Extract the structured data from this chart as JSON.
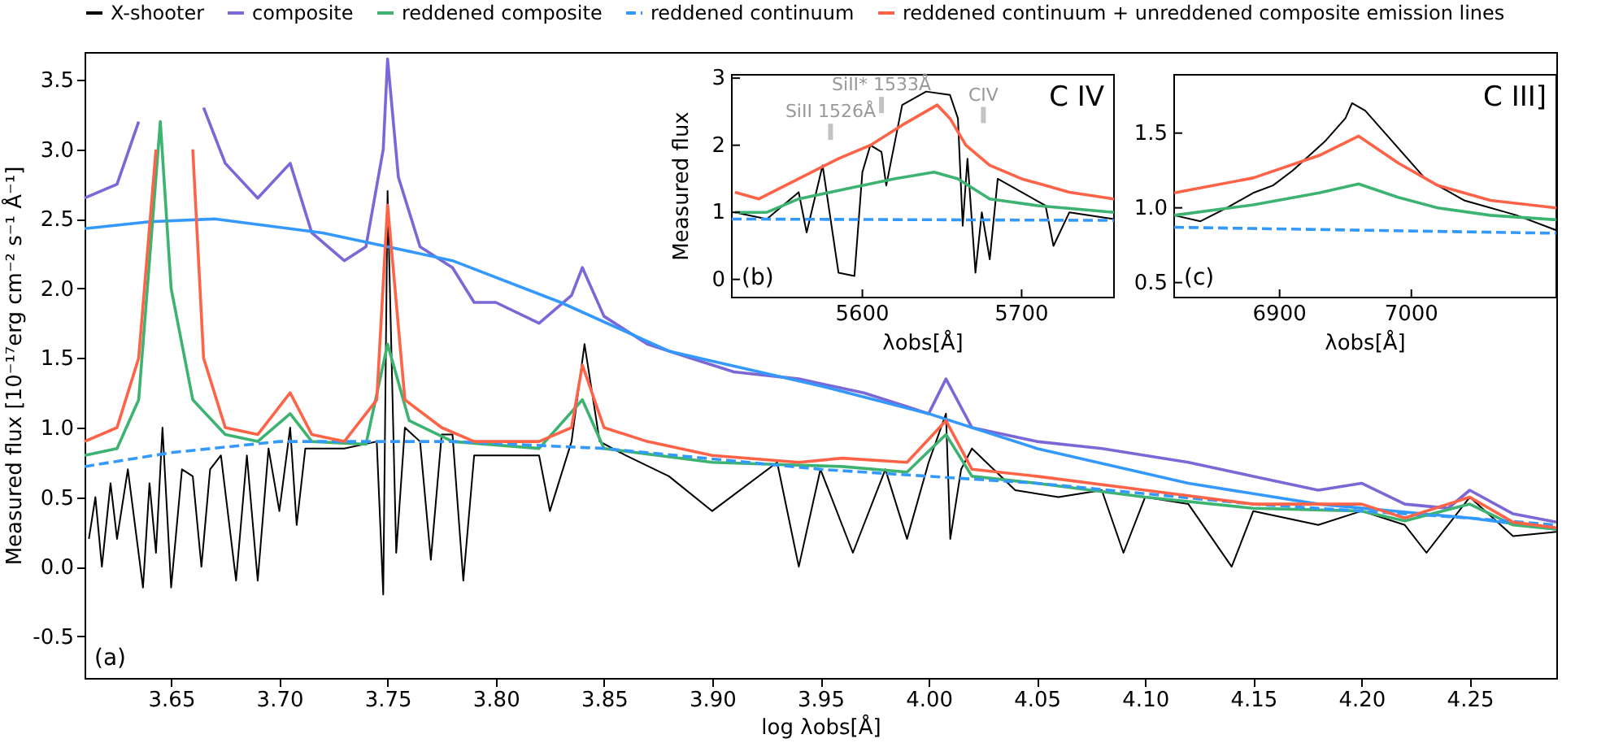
{
  "chart_data": [
    {
      "type": "line",
      "xlabel": "log λobs[Å]",
      "ylabel": "Measured flux [10⁻¹⁷erg cm⁻² s⁻¹ Å⁻¹]",
      "legend": "top",
      "grid": false,
      "xlim": [
        3.61,
        4.29
      ],
      "ylim": [
        -0.8,
        3.7
      ],
      "xticks": [
        3.65,
        {
          "value": 3.7,
          "label": "3.70"
        },
        3.75,
        {
          "value": 3.8,
          "label": "3.80"
        },
        3.85,
        {
          "value": 3.9,
          "label": "3.90"
        },
        3.95,
        {
          "value": 4.0,
          "label": "4.00"
        },
        4.05,
        {
          "value": 4.1,
          "label": "4.10"
        },
        4.15,
        {
          "value": 4.2,
          "label": "4.20"
        },
        4.25
      ],
      "yticks": [
        -0.5,
        {
          "value": 0,
          "label": "0.0"
        },
        0.5,
        {
          "value": 1,
          "label": "1.0"
        },
        1.5,
        {
          "value": 2,
          "label": "2.0"
        },
        2.5,
        {
          "value": 3,
          "label": "3.0"
        },
        3.5
      ],
      "annotations": [
        "(a)"
      ],
      "series": [
        {
          "name": "X-shooter",
          "color": "#000000",
          "line_style": "solid",
          "x": [
            3.612,
            3.615,
            3.618,
            3.622,
            3.625,
            3.63,
            3.637,
            3.64,
            3.643,
            3.646,
            3.65,
            3.655,
            3.66,
            3.664,
            3.668,
            3.673,
            3.68,
            3.685,
            3.69,
            3.695,
            3.7,
            3.705,
            3.708,
            3.712,
            3.73,
            3.745,
            3.748,
            3.75,
            3.754,
            3.758,
            3.765,
            3.77,
            3.775,
            3.78,
            3.785,
            3.79,
            3.82,
            3.825,
            3.835,
            3.841,
            3.848,
            3.86,
            3.88,
            3.9,
            3.93,
            3.94,
            3.95,
            3.965,
            3.98,
            3.99,
            4.0,
            4.008,
            4.01,
            4.015,
            4.02,
            4.04,
            4.06,
            4.08,
            4.09,
            4.1,
            4.12,
            4.14,
            4.15,
            4.18,
            4.2,
            4.22,
            4.23,
            4.25,
            4.27,
            4.29
          ],
          "values": [
            0.2,
            0.5,
            0.0,
            0.6,
            0.2,
            0.7,
            -0.15,
            0.6,
            0.1,
            1.0,
            -0.15,
            0.7,
            0.65,
            0.0,
            0.7,
            0.8,
            -0.1,
            0.8,
            -0.1,
            0.85,
            0.4,
            1.0,
            0.3,
            0.85,
            0.85,
            0.9,
            -0.2,
            2.7,
            0.1,
            1.0,
            0.9,
            0.05,
            0.95,
            0.95,
            -0.1,
            0.8,
            0.8,
            0.4,
            0.9,
            1.6,
            0.9,
            0.8,
            0.65,
            0.4,
            0.75,
            0.0,
            0.7,
            0.1,
            0.7,
            0.2,
            0.75,
            1.1,
            0.2,
            0.7,
            0.85,
            0.55,
            0.5,
            0.55,
            0.1,
            0.5,
            0.45,
            0.0,
            0.4,
            0.3,
            0.4,
            0.3,
            0.1,
            0.5,
            0.22,
            0.25
          ]
        },
        {
          "name": "composite",
          "color": "#7b68d6",
          "line_style": "solid",
          "x": [
            3.61,
            3.625,
            3.635,
            3.64,
            3.66,
            3.665,
            3.675,
            3.69,
            3.705,
            3.715,
            3.73,
            3.74,
            3.748,
            3.75,
            3.755,
            3.765,
            3.78,
            3.79,
            3.8,
            3.82,
            3.835,
            3.84,
            3.85,
            3.87,
            3.89,
            3.91,
            3.94,
            3.97,
            3.99,
            4.0,
            4.008,
            4.02,
            4.05,
            4.08,
            4.12,
            4.15,
            4.18,
            4.2,
            4.22,
            4.24,
            4.25,
            4.27,
            4.29
          ],
          "values": [
            2.65,
            2.75,
            3.2,
            null,
            null,
            3.3,
            2.9,
            2.65,
            2.9,
            2.4,
            2.2,
            2.3,
            3.0,
            3.65,
            2.8,
            2.3,
            2.15,
            1.9,
            1.9,
            1.75,
            1.95,
            2.15,
            1.8,
            1.6,
            1.5,
            1.4,
            1.35,
            1.25,
            1.15,
            1.1,
            1.35,
            1.0,
            0.9,
            0.85,
            0.75,
            0.65,
            0.55,
            0.6,
            0.45,
            0.42,
            0.55,
            0.38,
            0.32
          ]
        },
        {
          "color": "#3399ff",
          "line_style": "solid",
          "x": [
            3.61,
            3.64,
            3.67,
            3.72,
            3.78,
            3.83,
            3.88,
            3.95,
            4.0,
            4.05,
            4.12,
            4.18,
            4.25,
            4.29
          ],
          "values": [
            2.43,
            2.48,
            2.5,
            2.4,
            2.2,
            1.9,
            1.55,
            1.3,
            1.1,
            0.85,
            0.6,
            0.45,
            0.35,
            0.27
          ]
        },
        {
          "name": "reddened composite",
          "color": "#3cb371",
          "line_style": "solid",
          "x": [
            3.61,
            3.625,
            3.635,
            3.645,
            3.65,
            3.66,
            3.675,
            3.69,
            3.705,
            3.715,
            3.74,
            3.75,
            3.76,
            3.78,
            3.82,
            3.84,
            3.85,
            3.9,
            3.96,
            3.99,
            4.008,
            4.02,
            4.05,
            4.1,
            4.15,
            4.2,
            4.22,
            4.25,
            4.27,
            4.29
          ],
          "values": [
            0.8,
            0.85,
            1.2,
            3.2,
            2.0,
            1.2,
            0.95,
            0.9,
            1.1,
            0.9,
            0.88,
            1.6,
            1.05,
            0.9,
            0.85,
            1.2,
            0.85,
            0.75,
            0.72,
            0.68,
            0.95,
            0.65,
            0.6,
            0.5,
            0.42,
            0.4,
            0.33,
            0.45,
            0.3,
            0.27
          ]
        },
        {
          "name": "reddened continuum",
          "color": "#3399ff",
          "line_style": "dashed",
          "x": [
            3.61,
            3.65,
            3.7,
            3.78,
            3.85,
            3.95,
            4.05,
            4.15,
            4.25,
            4.29
          ],
          "values": [
            0.72,
            0.82,
            0.9,
            0.9,
            0.85,
            0.7,
            0.6,
            0.45,
            0.35,
            0.3
          ]
        },
        {
          "name": "reddened continuum + unreddened composite emission lines",
          "color": "#ff6347",
          "line_style": "solid",
          "x": [
            3.61,
            3.625,
            3.635,
            3.643,
            3.645,
            3.66,
            3.665,
            3.675,
            3.69,
            3.705,
            3.715,
            3.73,
            3.745,
            3.75,
            3.758,
            3.775,
            3.79,
            3.82,
            3.835,
            3.84,
            3.85,
            3.87,
            3.9,
            3.94,
            3.96,
            3.99,
            4.008,
            4.02,
            4.05,
            4.1,
            4.15,
            4.2,
            4.22,
            4.25,
            4.27,
            4.29
          ],
          "values": [
            0.9,
            1.0,
            1.5,
            3.0,
            null,
            3.0,
            1.5,
            1.0,
            0.95,
            1.25,
            0.95,
            0.9,
            1.2,
            2.6,
            1.2,
            1.0,
            0.9,
            0.9,
            1.0,
            1.45,
            1.0,
            0.9,
            0.8,
            0.75,
            0.78,
            0.75,
            1.05,
            0.7,
            0.65,
            0.55,
            0.45,
            0.45,
            0.35,
            0.5,
            0.32,
            0.28
          ]
        }
      ]
    },
    {
      "type": "line",
      "xlabel": "λobs[Å]",
      "ylabel": "Measured flux",
      "grid": false,
      "xlim": [
        5518,
        5758
      ],
      "ylim": [
        -0.27,
        3.05
      ],
      "xticks": [
        5600,
        5700
      ],
      "yticks": [
        0,
        1,
        2,
        3
      ],
      "annotations": [
        "(b)",
        "C IV",
        {
          "text": "SiII 1526Å",
          "x": 5580,
          "y": 2.2
        },
        {
          "text": "SiII* 1533Å",
          "x": 5612,
          "y": 2.6
        },
        {
          "text": "CIV",
          "x": 5676,
          "y": 2.45
        }
      ],
      "series": [
        {
          "color": "#000000",
          "line_style": "solid",
          "x": [
            5520,
            5540,
            5560,
            5565,
            5575,
            5585,
            5595,
            5600,
            5605,
            5612,
            5615,
            5625,
            5640,
            5655,
            5660,
            5663,
            5666,
            5671,
            5675,
            5680,
            5685,
            5700,
            5715,
            5720,
            5730,
            5758
          ],
          "values": [
            1.0,
            0.9,
            1.3,
            0.7,
            1.7,
            0.1,
            0.05,
            1.6,
            2.0,
            1.9,
            1.4,
            2.6,
            2.8,
            2.75,
            2.4,
            0.8,
            1.8,
            0.1,
            1.0,
            0.3,
            1.5,
            1.3,
            1.1,
            0.5,
            1.0,
            0.9
          ]
        },
        {
          "color": "#3cb371",
          "line_style": "solid",
          "x": [
            5520,
            5540,
            5560,
            5590,
            5620,
            5645,
            5660,
            5680,
            5710,
            5758
          ],
          "values": [
            1.0,
            1.0,
            1.2,
            1.35,
            1.5,
            1.6,
            1.5,
            1.2,
            1.1,
            1.0
          ]
        },
        {
          "color": "#3399ff",
          "line_style": "dashed",
          "x": [
            5518,
            5758
          ],
          "values": [
            0.9,
            0.88
          ]
        },
        {
          "color": "#ff6347",
          "line_style": "solid",
          "x": [
            5520,
            5535,
            5560,
            5585,
            5605,
            5625,
            5647,
            5655,
            5665,
            5680,
            5700,
            5730,
            5758
          ],
          "values": [
            1.3,
            1.2,
            1.5,
            1.8,
            2.0,
            2.3,
            2.6,
            2.4,
            2.0,
            1.7,
            1.5,
            1.3,
            1.2
          ]
        }
      ]
    },
    {
      "type": "line",
      "xlabel": "λobs[Å]",
      "grid": false,
      "xlim": [
        6820,
        7110
      ],
      "ylim": [
        0.4,
        1.89
      ],
      "xticks": [
        6900,
        7000
      ],
      "yticks": [
        0.5,
        {
          "value": 1,
          "label": "1.0"
        },
        1.5
      ],
      "annotations": [
        "(c)",
        "C III]"
      ],
      "series": [
        {
          "color": "#000000",
          "line_style": "solid",
          "x": [
            6820,
            6840,
            6860,
            6880,
            6895,
            6910,
            6935,
            6950,
            6955,
            6965,
            6985,
            7010,
            7040,
            7080,
            7110
          ],
          "values": [
            0.95,
            0.91,
            1.0,
            1.1,
            1.15,
            1.25,
            1.45,
            1.6,
            1.7,
            1.65,
            1.45,
            1.2,
            1.05,
            0.95,
            0.85
          ]
        },
        {
          "color": "#3cb371",
          "line_style": "solid",
          "x": [
            6820,
            6880,
            6930,
            6960,
            6990,
            7020,
            7060,
            7110
          ],
          "values": [
            0.95,
            1.02,
            1.1,
            1.16,
            1.07,
            1.0,
            0.95,
            0.92
          ]
        },
        {
          "color": "#3399ff",
          "line_style": "dashed",
          "x": [
            6820,
            7110
          ],
          "values": [
            0.87,
            0.83
          ]
        },
        {
          "color": "#ff6347",
          "line_style": "solid",
          "x": [
            6820,
            6880,
            6930,
            6960,
            6990,
            7020,
            7060,
            7110
          ],
          "values": [
            1.1,
            1.2,
            1.35,
            1.48,
            1.3,
            1.15,
            1.05,
            1.0
          ]
        }
      ]
    }
  ]
}
